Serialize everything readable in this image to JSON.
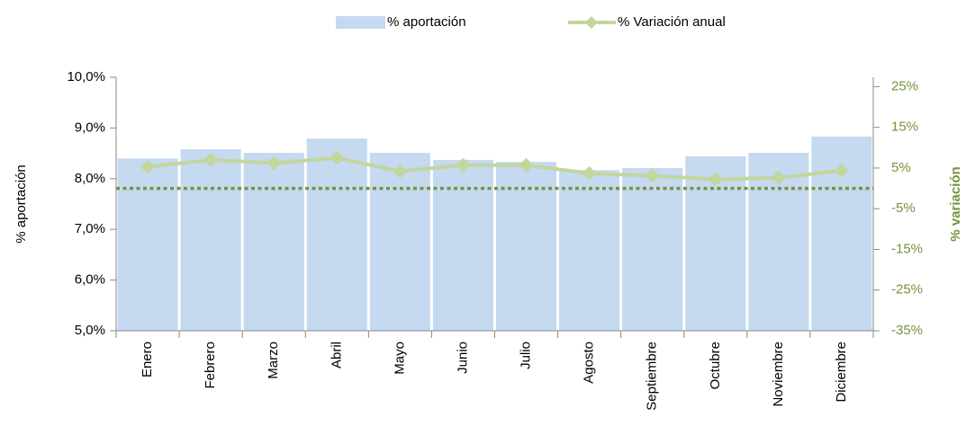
{
  "chart_data": {
    "type": "bar_line",
    "categories": [
      "Enero",
      "Febrero",
      "Marzo",
      "Abril",
      "Mayo",
      "Junio",
      "Julio",
      "Agosto",
      "Septiembre",
      "Octubre",
      "Noviembre",
      "Diciembre"
    ],
    "y_label": "% aportación",
    "y2_label": "% variación",
    "series": [
      {
        "name": "% aportación",
        "type": "bar",
        "color": "#c5d9f1",
        "values": [
          8.4,
          8.58,
          8.51,
          8.79,
          8.51,
          8.37,
          8.33,
          8.17,
          8.21,
          8.44,
          8.51,
          8.83
        ]
      },
      {
        "name": "% Variación anual",
        "type": "line",
        "axis": "y2",
        "color": "#c3d69b",
        "values": [
          5.3,
          7.0,
          6.2,
          7.5,
          4.2,
          5.7,
          5.7,
          3.7,
          3.1,
          2.2,
          2.6,
          4.4
        ]
      }
    ],
    "ylim": [
      5,
      10
    ],
    "yticks": [
      {
        "value": 5,
        "label": "5,0%"
      },
      {
        "value": 6,
        "label": "6,0%"
      },
      {
        "value": 7,
        "label": "7,0%"
      },
      {
        "value": 8,
        "label": "8,0%"
      },
      {
        "value": 9,
        "label": "9,0%"
      },
      {
        "value": 10,
        "label": "10,0%"
      }
    ],
    "y2lim": [
      -35,
      27.3
    ],
    "y2ticks": [
      {
        "value": -35,
        "label": "-35%"
      },
      {
        "value": -25,
        "label": "-25%"
      },
      {
        "value": -15,
        "label": "-15%"
      },
      {
        "value": -5,
        "label": "-5%"
      },
      {
        "value": 5,
        "label": "5%"
      },
      {
        "value": 15,
        "label": "15%"
      },
      {
        "value": 25,
        "label": "25%"
      }
    ],
    "y2_color": "#77933c",
    "y2_zero_line": true,
    "legend": "top"
  }
}
